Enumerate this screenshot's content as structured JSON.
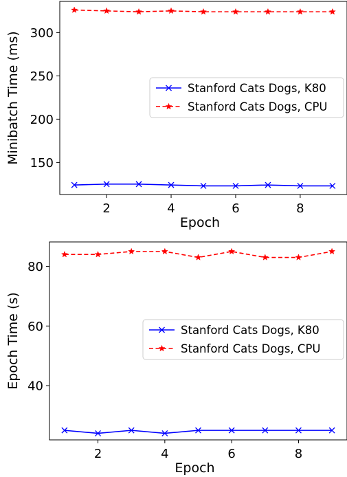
{
  "chart_data": [
    {
      "type": "line",
      "xlabel": "Epoch",
      "ylabel": "Minibatch Time (ms)",
      "xlim": [
        0.55,
        9.45
      ],
      "ylim": [
        113,
        336
      ],
      "xticks": [
        2,
        4,
        6,
        8
      ],
      "yticks": [
        150,
        200,
        250,
        300
      ],
      "grid": false,
      "legend_position": "center-right",
      "x": [
        1,
        2,
        3,
        4,
        5,
        6,
        7,
        8,
        9
      ],
      "series": [
        {
          "name": "Stanford Cats Dogs, K80",
          "color": "#0000ff",
          "linestyle": "solid",
          "marker": "x",
          "values": [
            124,
            125,
            125,
            124,
            123,
            123,
            124,
            123,
            123
          ]
        },
        {
          "name": "Stanford Cats Dogs, CPU",
          "color": "#ff0000",
          "linestyle": "dashed",
          "marker": "star",
          "values": [
            326,
            325,
            324,
            325,
            324,
            324,
            324,
            324,
            324
          ]
        }
      ]
    },
    {
      "type": "line",
      "xlabel": "Epoch",
      "ylabel": "Epoch Time (s)",
      "xlim": [
        0.55,
        9.45
      ],
      "ylim": [
        21.8,
        88.2
      ],
      "xticks": [
        2,
        4,
        6,
        8
      ],
      "yticks": [
        40,
        60,
        80
      ],
      "grid": false,
      "legend_position": "center-right",
      "x": [
        1,
        2,
        3,
        4,
        5,
        6,
        7,
        8,
        9
      ],
      "series": [
        {
          "name": "Stanford Cats Dogs, K80",
          "color": "#0000ff",
          "linestyle": "solid",
          "marker": "x",
          "values": [
            25,
            24,
            25,
            24,
            25,
            25,
            25,
            25,
            25
          ]
        },
        {
          "name": "Stanford Cats Dogs, CPU",
          "color": "#ff0000",
          "linestyle": "dashed",
          "marker": "star",
          "values": [
            84,
            84,
            85,
            85,
            83,
            85,
            83,
            83,
            85
          ]
        }
      ]
    }
  ]
}
